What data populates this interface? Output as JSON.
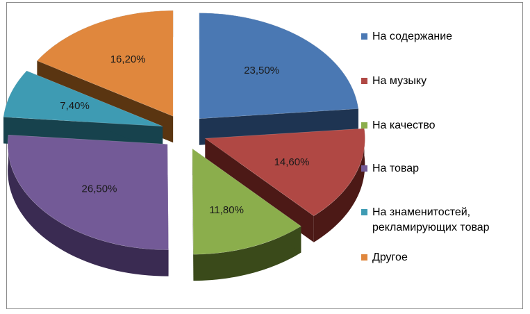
{
  "chart_data": {
    "type": "pie",
    "style": "exploded-3d",
    "legend_position": "right",
    "slices": [
      {
        "name": "На содержание",
        "value": 23.5,
        "label": "23,50%",
        "color": "#4a78b3",
        "dark": "#1e3452"
      },
      {
        "name": "На музыку",
        "value": 14.6,
        "label": "14,60%",
        "color": "#b04844",
        "dark": "#4c1916"
      },
      {
        "name": "На качество",
        "value": 11.8,
        "label": "11,80%",
        "color": "#8bae4c",
        "dark": "#3a4a1a"
      },
      {
        "name": "На товар",
        "value": 26.5,
        "label": "26,50%",
        "color": "#735a97",
        "dark": "#3a2b52"
      },
      {
        "name": "На знаменитостей,\nрекламирующих товар",
        "value": 7.4,
        "label": "7,40%",
        "color": "#3e9bb3",
        "dark": "#17424d"
      },
      {
        "name": "Другое",
        "value": 16.2,
        "label": "16,20%",
        "color": "#e0873d",
        "dark": "#5a3511"
      }
    ]
  }
}
